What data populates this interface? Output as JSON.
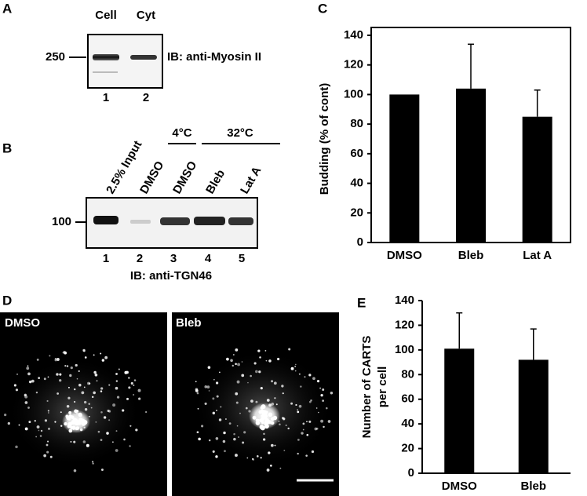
{
  "panels": {
    "a": {
      "label": "A",
      "lanes": [
        "Cell",
        "Cyt"
      ],
      "marker": "250",
      "antibody": "IB: anti-Myosin II",
      "lane_numbers": [
        "1",
        "2"
      ]
    },
    "b": {
      "label": "B",
      "lanes": [
        "2.5% Input",
        "DMSO",
        "DMSO",
        "Bleb",
        "Lat A"
      ],
      "temps": [
        "4°C",
        "32°C"
      ],
      "marker": "100",
      "lane_numbers": [
        "1",
        "2",
        "3",
        "4",
        "5"
      ],
      "antibody": "IB: anti-TGN46"
    },
    "c": {
      "label": "C"
    },
    "d": {
      "label": "D",
      "images": [
        "DMSO",
        "Bleb"
      ]
    },
    "e": {
      "label": "E"
    }
  },
  "chart_data": [
    {
      "type": "bar",
      "y_label": [
        "Budding (% of cont)"
      ],
      "categories": [
        "DMSO",
        "Bleb",
        "Lat A"
      ],
      "values": [
        100,
        104,
        85
      ],
      "errors": [
        null,
        30,
        18
      ],
      "color": "#000000",
      "ylim": [
        0,
        140
      ],
      "yticks": [
        0,
        20,
        40,
        60,
        80,
        100,
        120,
        140
      ],
      "box": true
    },
    {
      "type": "bar",
      "y_label": [
        "Number of CARTS",
        "per cell"
      ],
      "categories": [
        "DMSO",
        "Bleb"
      ],
      "values": [
        101,
        92
      ],
      "errors": [
        29,
        25
      ],
      "color": "#000000",
      "ylim": [
        0,
        140
      ],
      "yticks": [
        0,
        20,
        40,
        60,
        80,
        100,
        120,
        140
      ],
      "box": false
    }
  ]
}
